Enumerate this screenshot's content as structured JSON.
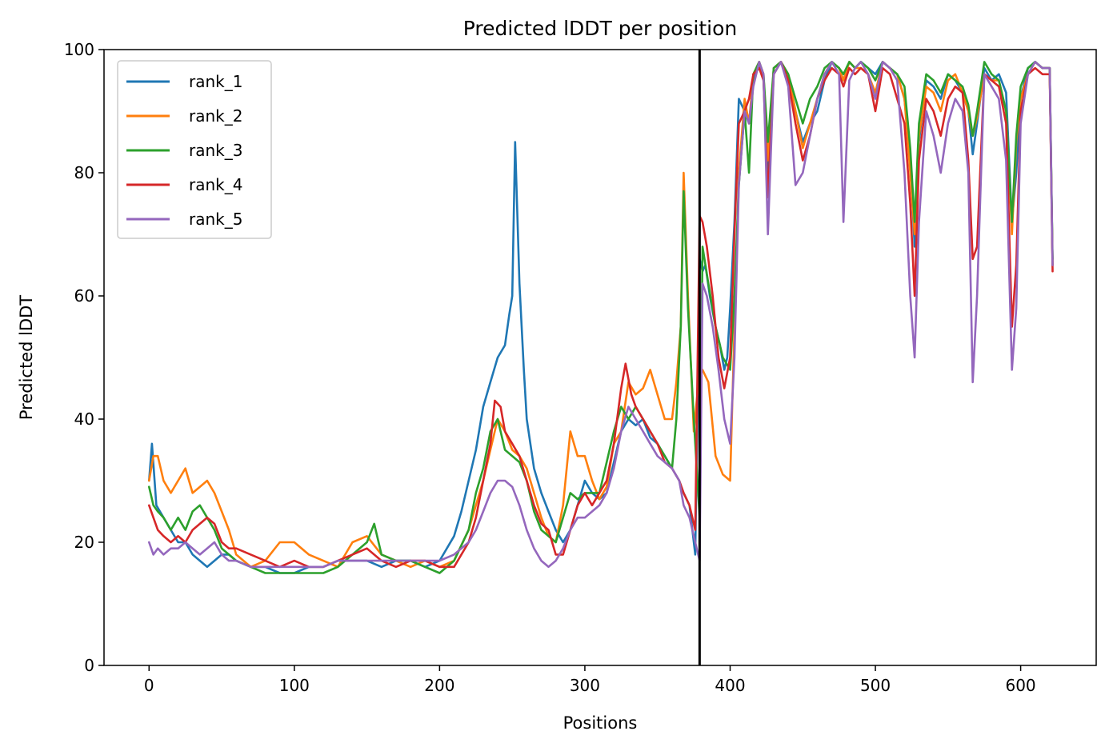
{
  "chart_data": {
    "type": "line",
    "title": "Predicted lDDT per position",
    "xlabel": "Positions",
    "ylabel": "Predicted lDDT",
    "xlim": [
      -31,
      652
    ],
    "ylim": [
      0,
      100
    ],
    "xticks": [
      0,
      100,
      200,
      300,
      400,
      500,
      600
    ],
    "yticks": [
      0,
      20,
      40,
      60,
      80,
      100
    ],
    "grid": false,
    "legend_position": "upper-left",
    "vline_x": 379,
    "series": [
      {
        "name": "rank_1",
        "color": "#1f77b4",
        "x": [
          0,
          2,
          5,
          10,
          15,
          20,
          25,
          30,
          35,
          40,
          45,
          50,
          55,
          60,
          70,
          80,
          90,
          100,
          110,
          120,
          130,
          140,
          150,
          160,
          170,
          180,
          190,
          200,
          210,
          215,
          220,
          225,
          230,
          235,
          240,
          245,
          248,
          250,
          252,
          255,
          258,
          260,
          265,
          270,
          275,
          280,
          285,
          290,
          295,
          300,
          305,
          310,
          315,
          320,
          325,
          330,
          335,
          340,
          345,
          350,
          355,
          360,
          365,
          368,
          372,
          376,
          379,
          381,
          383,
          386,
          390,
          393,
          396,
          398,
          400,
          403,
          406,
          410,
          413,
          416,
          420,
          423,
          426,
          430,
          435,
          440,
          445,
          450,
          455,
          460,
          465,
          470,
          475,
          478,
          482,
          486,
          490,
          495,
          500,
          505,
          510,
          515,
          520,
          524,
          527,
          530,
          535,
          540,
          545,
          550,
          555,
          560,
          564,
          567,
          570,
          575,
          580,
          585,
          590,
          594,
          597,
          600,
          605,
          610,
          615,
          620,
          622
        ],
        "y": [
          30,
          36,
          26,
          24,
          22,
          20,
          20,
          18,
          17,
          16,
          17,
          18,
          18,
          17,
          16,
          16,
          15,
          15,
          16,
          16,
          17,
          17,
          17,
          16,
          17,
          17,
          16,
          17,
          21,
          25,
          30,
          35,
          42,
          46,
          50,
          52,
          57,
          60,
          85,
          62,
          48,
          40,
          32,
          28,
          25,
          22,
          20,
          22,
          26,
          30,
          28,
          27,
          28,
          33,
          38,
          40,
          39,
          40,
          37,
          36,
          34,
          32,
          30,
          28,
          26,
          18,
          66,
          64,
          65,
          60,
          55,
          52,
          48,
          50,
          58,
          72,
          92,
          90,
          88,
          95,
          98,
          95,
          80,
          97,
          98,
          96,
          90,
          85,
          88,
          90,
          95,
          98,
          97,
          95,
          98,
          97,
          98,
          97,
          96,
          98,
          97,
          96,
          92,
          82,
          68,
          85,
          95,
          94,
          92,
          96,
          95,
          93,
          90,
          83,
          88,
          97,
          95,
          96,
          93,
          72,
          80,
          92,
          97,
          98,
          97,
          97,
          65
        ]
      },
      {
        "name": "rank_2",
        "color": "#ff7f0e",
        "x": [
          0,
          3,
          6,
          10,
          15,
          20,
          25,
          30,
          35,
          40,
          45,
          50,
          55,
          60,
          70,
          80,
          90,
          100,
          110,
          120,
          130,
          140,
          150,
          160,
          170,
          180,
          190,
          200,
          210,
          220,
          225,
          230,
          235,
          240,
          245,
          250,
          255,
          260,
          265,
          270,
          275,
          280,
          285,
          290,
          295,
          300,
          305,
          310,
          315,
          320,
          325,
          330,
          335,
          340,
          345,
          350,
          355,
          360,
          363,
          366,
          368,
          371,
          375,
          379,
          381,
          385,
          390,
          395,
          400,
          403,
          406,
          410,
          413,
          416,
          420,
          423,
          426,
          430,
          435,
          440,
          445,
          450,
          455,
          460,
          465,
          470,
          475,
          478,
          482,
          486,
          490,
          495,
          500,
          505,
          510,
          515,
          520,
          524,
          527,
          530,
          535,
          540,
          545,
          550,
          555,
          560,
          564,
          567,
          570,
          575,
          580,
          585,
          590,
          594,
          597,
          600,
          605,
          610,
          615,
          620,
          622
        ],
        "y": [
          30,
          34,
          34,
          30,
          28,
          30,
          32,
          28,
          29,
          30,
          28,
          25,
          22,
          18,
          16,
          17,
          20,
          20,
          18,
          17,
          16,
          20,
          21,
          18,
          17,
          16,
          17,
          16,
          17,
          22,
          26,
          30,
          35,
          40,
          38,
          35,
          34,
          32,
          28,
          24,
          21,
          20,
          26,
          38,
          34,
          34,
          30,
          27,
          29,
          36,
          38,
          46,
          44,
          45,
          48,
          44,
          40,
          40,
          46,
          55,
          80,
          60,
          38,
          48,
          48,
          46,
          34,
          31,
          30,
          55,
          80,
          92,
          88,
          96,
          98,
          96,
          82,
          97,
          98,
          96,
          90,
          84,
          88,
          92,
          96,
          98,
          97,
          95,
          98,
          97,
          97,
          96,
          93,
          98,
          97,
          96,
          92,
          80,
          70,
          86,
          94,
          93,
          90,
          95,
          96,
          93,
          90,
          86,
          89,
          96,
          95,
          95,
          90,
          70,
          85,
          92,
          96,
          98,
          97,
          97,
          65
        ]
      },
      {
        "name": "rank_3",
        "color": "#2ca02c",
        "x": [
          0,
          3,
          6,
          10,
          15,
          20,
          25,
          30,
          35,
          40,
          45,
          50,
          55,
          60,
          70,
          80,
          90,
          100,
          110,
          120,
          130,
          140,
          150,
          155,
          160,
          170,
          180,
          190,
          200,
          210,
          220,
          225,
          230,
          235,
          240,
          245,
          250,
          255,
          260,
          265,
          270,
          275,
          280,
          285,
          290,
          295,
          300,
          305,
          310,
          315,
          320,
          325,
          330,
          335,
          340,
          345,
          350,
          355,
          360,
          363,
          366,
          368,
          371,
          375,
          379,
          381,
          385,
          390,
          395,
          400,
          403,
          406,
          410,
          413,
          416,
          420,
          423,
          426,
          430,
          435,
          440,
          445,
          450,
          455,
          460,
          465,
          470,
          475,
          478,
          482,
          486,
          490,
          495,
          500,
          505,
          510,
          515,
          520,
          524,
          527,
          530,
          535,
          540,
          545,
          550,
          555,
          560,
          564,
          567,
          570,
          575,
          580,
          585,
          590,
          594,
          597,
          600,
          605,
          610,
          615,
          620,
          622
        ],
        "y": [
          29,
          26,
          25,
          24,
          22,
          24,
          22,
          25,
          26,
          24,
          22,
          19,
          18,
          17,
          16,
          15,
          15,
          15,
          15,
          15,
          16,
          18,
          20,
          23,
          18,
          17,
          17,
          16,
          15,
          17,
          22,
          28,
          32,
          38,
          40,
          35,
          34,
          33,
          30,
          25,
          22,
          21,
          20,
          24,
          28,
          27,
          28,
          28,
          28,
          33,
          38,
          42,
          40,
          42,
          40,
          38,
          36,
          34,
          32,
          40,
          55,
          77,
          58,
          40,
          24,
          68,
          62,
          55,
          50,
          48,
          60,
          78,
          90,
          80,
          96,
          98,
          96,
          85,
          97,
          98,
          96,
          92,
          88,
          92,
          94,
          97,
          98,
          97,
          96,
          98,
          97,
          98,
          97,
          95,
          98,
          97,
          96,
          94,
          84,
          72,
          88,
          96,
          95,
          93,
          96,
          95,
          94,
          91,
          86,
          90,
          98,
          96,
          95,
          90,
          72,
          86,
          94,
          97,
          98,
          97,
          97,
          66
        ]
      },
      {
        "name": "rank_4",
        "color": "#d62728",
        "x": [
          0,
          3,
          6,
          10,
          15,
          20,
          25,
          30,
          35,
          40,
          45,
          50,
          55,
          60,
          70,
          80,
          90,
          100,
          110,
          120,
          130,
          140,
          150,
          160,
          170,
          180,
          190,
          200,
          210,
          220,
          225,
          230,
          235,
          238,
          242,
          245,
          250,
          255,
          260,
          265,
          270,
          275,
          280,
          285,
          290,
          295,
          300,
          305,
          310,
          315,
          320,
          325,
          328,
          332,
          335,
          340,
          345,
          350,
          355,
          360,
          365,
          368,
          372,
          376,
          379,
          381,
          384,
          388,
          392,
          396,
          400,
          403,
          406,
          410,
          413,
          416,
          420,
          423,
          426,
          430,
          435,
          440,
          445,
          450,
          455,
          460,
          465,
          470,
          475,
          478,
          482,
          486,
          490,
          495,
          500,
          505,
          510,
          515,
          520,
          524,
          527,
          530,
          535,
          540,
          545,
          550,
          555,
          560,
          564,
          567,
          570,
          575,
          580,
          585,
          590,
          594,
          597,
          600,
          605,
          610,
          615,
          620,
          622
        ],
        "y": [
          26,
          24,
          22,
          21,
          20,
          21,
          20,
          22,
          23,
          24,
          23,
          20,
          19,
          19,
          18,
          17,
          16,
          17,
          16,
          16,
          17,
          18,
          19,
          17,
          16,
          17,
          17,
          16,
          16,
          20,
          24,
          30,
          36,
          43,
          42,
          38,
          36,
          34,
          30,
          26,
          23,
          22,
          18,
          18,
          22,
          26,
          28,
          26,
          28,
          30,
          36,
          45,
          49,
          44,
          42,
          40,
          38,
          36,
          33,
          32,
          30,
          28,
          26,
          22,
          73,
          72,
          68,
          60,
          50,
          45,
          50,
          70,
          88,
          90,
          92,
          96,
          97,
          95,
          76,
          96,
          98,
          95,
          88,
          82,
          86,
          92,
          95,
          97,
          96,
          94,
          97,
          96,
          97,
          96,
          90,
          97,
          96,
          92,
          88,
          75,
          60,
          82,
          92,
          90,
          86,
          92,
          94,
          93,
          82,
          66,
          68,
          96,
          95,
          94,
          88,
          55,
          65,
          90,
          96,
          97,
          96,
          96,
          64
        ]
      },
      {
        "name": "rank_5",
        "color": "#9467bd",
        "x": [
          0,
          3,
          6,
          10,
          15,
          20,
          25,
          30,
          35,
          40,
          45,
          50,
          55,
          60,
          70,
          80,
          90,
          100,
          110,
          120,
          130,
          140,
          150,
          160,
          170,
          180,
          190,
          200,
          210,
          220,
          225,
          230,
          235,
          240,
          245,
          250,
          255,
          260,
          265,
          270,
          275,
          280,
          285,
          290,
          295,
          300,
          305,
          310,
          315,
          320,
          325,
          330,
          335,
          340,
          345,
          350,
          355,
          360,
          365,
          368,
          372,
          376,
          379,
          381,
          384,
          388,
          392,
          396,
          400,
          403,
          406,
          410,
          413,
          416,
          420,
          423,
          426,
          430,
          435,
          440,
          445,
          450,
          455,
          460,
          465,
          470,
          475,
          478,
          482,
          486,
          490,
          495,
          500,
          505,
          510,
          515,
          520,
          524,
          527,
          530,
          535,
          540,
          545,
          550,
          555,
          560,
          564,
          567,
          570,
          575,
          580,
          585,
          590,
          594,
          597,
          600,
          605,
          610,
          615,
          620,
          622
        ],
        "y": [
          20,
          18,
          19,
          18,
          19,
          19,
          20,
          19,
          18,
          19,
          20,
          18,
          17,
          17,
          16,
          16,
          16,
          16,
          16,
          16,
          17,
          17,
          17,
          17,
          17,
          17,
          17,
          17,
          18,
          20,
          22,
          25,
          28,
          30,
          30,
          29,
          26,
          22,
          19,
          17,
          16,
          17,
          19,
          22,
          24,
          24,
          25,
          26,
          28,
          32,
          38,
          42,
          40,
          38,
          36,
          34,
          33,
          32,
          30,
          26,
          24,
          20,
          17,
          62,
          60,
          55,
          48,
          40,
          36,
          50,
          78,
          90,
          88,
          94,
          98,
          96,
          70,
          96,
          98,
          94,
          78,
          80,
          86,
          92,
          96,
          98,
          96,
          72,
          95,
          97,
          98,
          96,
          92,
          98,
          97,
          95,
          80,
          60,
          50,
          72,
          90,
          86,
          80,
          88,
          92,
          90,
          80,
          46,
          60,
          96,
          94,
          92,
          82,
          48,
          58,
          88,
          96,
          98,
          97,
          97,
          65
        ]
      }
    ]
  }
}
